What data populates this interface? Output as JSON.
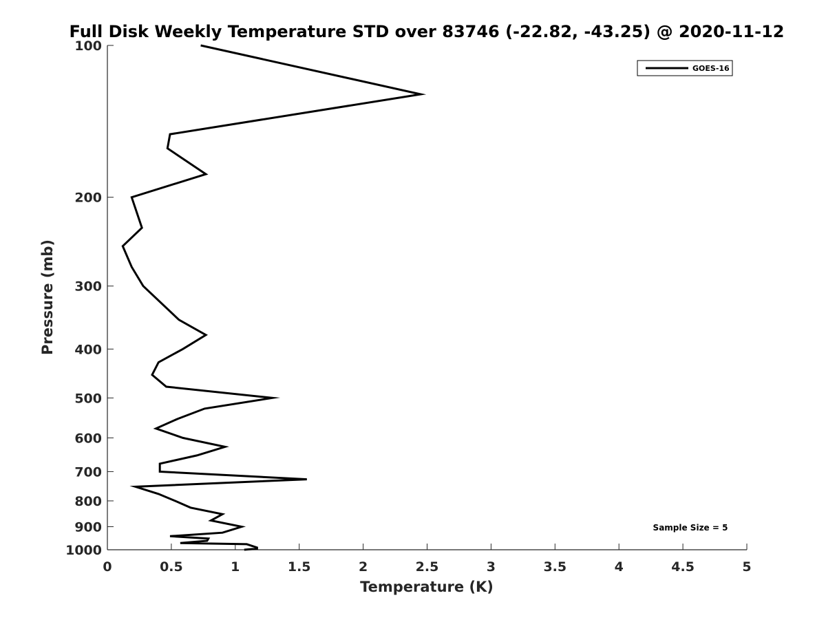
{
  "chart_data": {
    "type": "line",
    "title": "Full Disk Weekly Temperature STD over 83746 (-22.82, -43.25) @ 2020-11-12",
    "xlabel": "Temperature (K)",
    "ylabel": "Pressure (mb)",
    "xlim": [
      0,
      5
    ],
    "ylim": [
      100,
      1000
    ],
    "yscale": "log",
    "y_reversed": true,
    "grid": false,
    "legend_position": "top-right",
    "xticks": [
      "0",
      "0.5",
      "1",
      "1.5",
      "2",
      "2.5",
      "3",
      "3.5",
      "4",
      "4.5",
      "5"
    ],
    "yticks": [
      "100",
      "200",
      "300",
      "400",
      "500",
      "600",
      "700",
      "800",
      "900",
      "1000"
    ],
    "series": [
      {
        "name": "GOES-16",
        "color": "#000000",
        "x": [
          0.73,
          2.45,
          0.49,
          0.47,
          0.77,
          0.19,
          0.27,
          0.12,
          0.19,
          0.28,
          0.56,
          0.77,
          0.59,
          0.4,
          0.35,
          0.46,
          1.29,
          0.76,
          0.55,
          0.38,
          0.59,
          0.92,
          0.7,
          0.41,
          0.41,
          1.56,
          0.22,
          0.4,
          0.53,
          0.65,
          0.9,
          0.81,
          1.05,
          0.9,
          0.49,
          0.79,
          0.78,
          0.57,
          1.09,
          1.17,
          1.17,
          1.07
        ],
        "y": [
          100,
          125,
          150,
          160,
          180,
          200,
          230,
          250,
          275,
          300,
          350,
          375,
          400,
          425,
          450,
          475,
          500,
          525,
          550,
          575,
          600,
          625,
          650,
          675,
          700,
          725,
          750,
          775,
          800,
          825,
          850,
          875,
          900,
          925,
          940,
          950,
          960,
          970,
          975,
          990,
          995,
          1000
        ]
      }
    ],
    "annotation": "Sample Size = 5"
  }
}
